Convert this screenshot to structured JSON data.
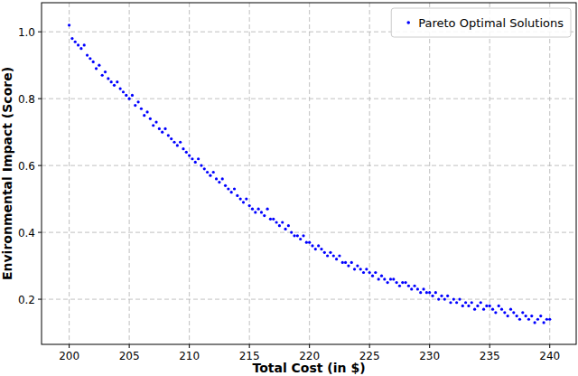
{
  "chart_data": {
    "type": "scatter",
    "x_label": "Total Cost (in $)",
    "y_label": "Environmental Impact (Score)",
    "xlim": [
      197.7,
      242.2
    ],
    "ylim": [
      0.065,
      1.087
    ],
    "xticks": [
      200,
      205,
      210,
      215,
      220,
      225,
      230,
      235,
      240
    ],
    "yticks": [
      0.2,
      0.4,
      0.6,
      0.8,
      {
        "value": 1,
        "label": "1.0"
      }
    ],
    "grid": true,
    "legend": "upper right",
    "x": [
      200,
      200.25,
      200.5,
      200.75,
      201,
      201.25,
      201.5,
      201.75,
      202,
      202.25,
      202.5,
      202.75,
      203,
      203.25,
      203.5,
      203.75,
      204,
      204.25,
      204.5,
      204.75,
      205,
      205.25,
      205.5,
      205.75,
      206,
      206.25,
      206.5,
      206.75,
      207,
      207.25,
      207.5,
      207.75,
      208,
      208.25,
      208.5,
      208.75,
      209,
      209.25,
      209.5,
      209.75,
      210,
      210.25,
      210.5,
      210.75,
      211,
      211.25,
      211.5,
      211.75,
      212,
      212.25,
      212.5,
      212.75,
      213,
      213.25,
      213.5,
      213.75,
      214,
      214.25,
      214.5,
      214.75,
      215,
      215.25,
      215.5,
      215.75,
      216,
      216.25,
      216.5,
      216.75,
      217,
      217.25,
      217.5,
      217.75,
      218,
      218.25,
      218.5,
      218.75,
      219,
      219.25,
      219.5,
      219.75,
      220,
      220.25,
      220.5,
      220.75,
      221,
      221.25,
      221.5,
      221.75,
      222,
      222.25,
      222.5,
      222.75,
      223,
      223.25,
      223.5,
      223.75,
      224,
      224.25,
      224.5,
      224.75,
      225,
      225.25,
      225.5,
      225.75,
      226,
      226.25,
      226.5,
      226.75,
      227,
      227.25,
      227.5,
      227.75,
      228,
      228.25,
      228.5,
      228.75,
      229,
      229.25,
      229.5,
      229.75,
      230,
      230.25,
      230.5,
      230.75,
      231,
      231.25,
      231.5,
      231.75,
      232,
      232.25,
      232.5,
      232.75,
      233,
      233.25,
      233.5,
      233.75,
      234,
      234.25,
      234.5,
      234.75,
      235,
      235.25,
      235.5,
      235.75,
      236,
      236.25,
      236.5,
      236.75,
      237,
      237.25,
      237.5,
      237.75,
      238,
      238.25,
      238.5,
      238.75,
      239,
      239.25,
      239.5,
      239.75,
      240
    ],
    "series": [
      {
        "name": "Pareto Optimal Solutions",
        "color": "#0000ff",
        "marker": "o",
        "values": [
          1.02,
          0.98,
          0.97,
          0.96,
          0.95,
          0.96,
          0.93,
          0.92,
          0.91,
          0.89,
          0.9,
          0.87,
          0.88,
          0.86,
          0.85,
          0.84,
          0.85,
          0.83,
          0.82,
          0.81,
          0.8,
          0.81,
          0.78,
          0.79,
          0.77,
          0.75,
          0.76,
          0.74,
          0.72,
          0.73,
          0.71,
          0.7,
          0.71,
          0.69,
          0.68,
          0.67,
          0.66,
          0.67,
          0.65,
          0.64,
          0.63,
          0.62,
          0.61,
          0.62,
          0.6,
          0.59,
          0.58,
          0.57,
          0.58,
          0.56,
          0.55,
          0.56,
          0.54,
          0.53,
          0.52,
          0.53,
          0.51,
          0.5,
          0.49,
          0.5,
          0.48,
          0.47,
          0.46,
          0.47,
          0.46,
          0.45,
          0.47,
          0.44,
          0.44,
          0.43,
          0.42,
          0.43,
          0.41,
          0.42,
          0.4,
          0.39,
          0.39,
          0.38,
          0.39,
          0.37,
          0.37,
          0.36,
          0.35,
          0.36,
          0.35,
          0.34,
          0.33,
          0.34,
          0.33,
          0.32,
          0.33,
          0.31,
          0.31,
          0.3,
          0.31,
          0.29,
          0.3,
          0.29,
          0.28,
          0.29,
          0.28,
          0.27,
          0.28,
          0.26,
          0.27,
          0.26,
          0.25,
          0.26,
          0.26,
          0.25,
          0.24,
          0.25,
          0.25,
          0.24,
          0.23,
          0.24,
          0.23,
          0.22,
          0.23,
          0.22,
          0.22,
          0.21,
          0.22,
          0.2,
          0.21,
          0.2,
          0.21,
          0.19,
          0.2,
          0.19,
          0.2,
          0.18,
          0.19,
          0.18,
          0.19,
          0.17,
          0.18,
          0.19,
          0.17,
          0.18,
          0.18,
          0.17,
          0.16,
          0.18,
          0.17,
          0.16,
          0.15,
          0.17,
          0.16,
          0.15,
          0.14,
          0.16,
          0.15,
          0.14,
          0.15,
          0.13,
          0.14,
          0.15,
          0.13,
          0.14,
          0.14
        ]
      }
    ]
  }
}
